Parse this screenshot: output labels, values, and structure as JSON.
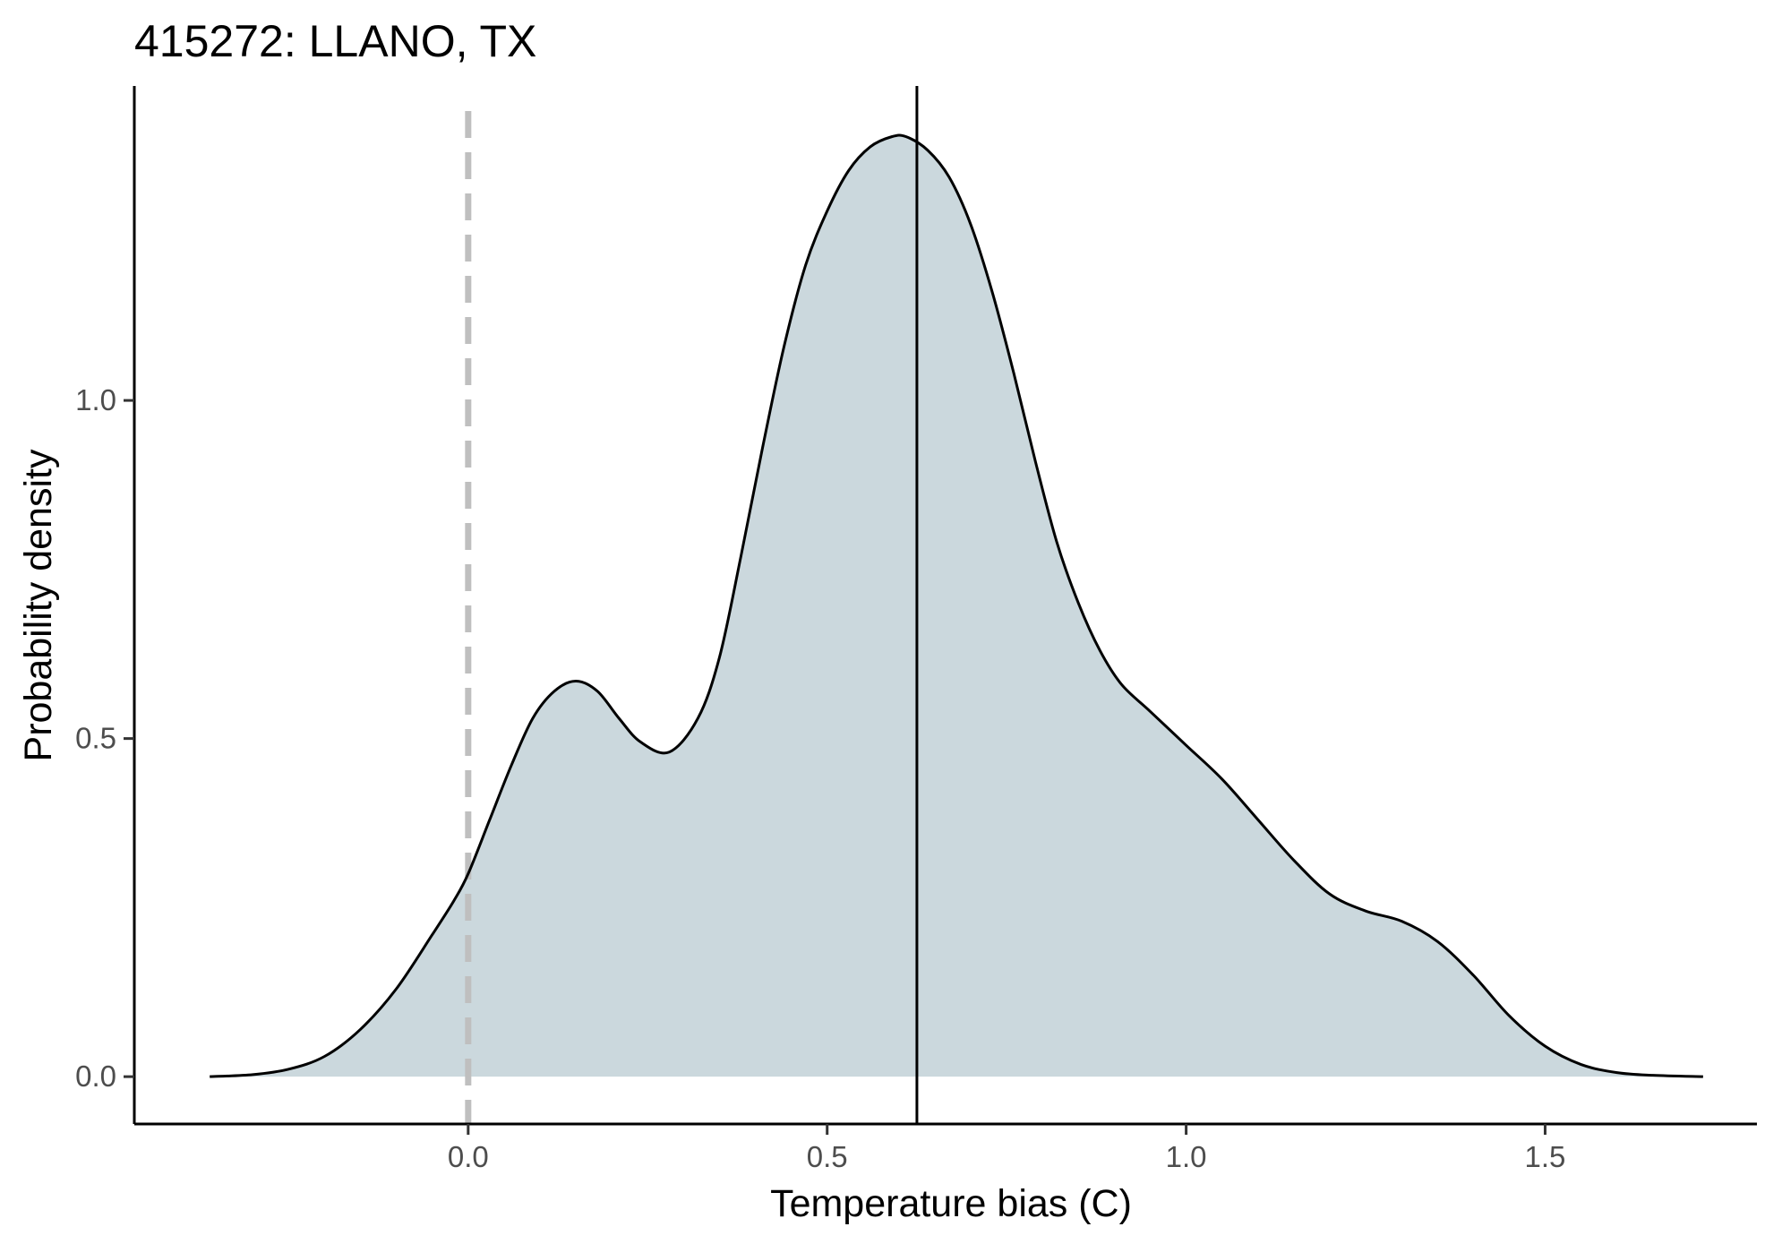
{
  "chart_data": {
    "type": "area",
    "title": "415272: LLANO, TX",
    "xlabel": "Temperature bias (C)",
    "ylabel": "Probability density",
    "xlim": [
      -0.465,
      1.795
    ],
    "ylim": [
      -0.07,
      1.465
    ],
    "x_ticks": [
      0.0,
      0.5,
      1.0,
      1.5
    ],
    "x_tick_labels": [
      "0.0",
      "0.5",
      "1.0",
      "1.5"
    ],
    "y_ticks": [
      0.0,
      0.5,
      1.0
    ],
    "y_tick_labels": [
      "0.0",
      "0.5",
      "1.0"
    ],
    "grid": false,
    "legend": "none",
    "fill_color": "#cbd8dd",
    "line_color": "#000000",
    "reference_lines": [
      {
        "x": 0.0,
        "style": "dashed",
        "color": "#bfbfbf"
      },
      {
        "x": 0.625,
        "style": "solid",
        "color": "#000000"
      }
    ],
    "density": {
      "x": [
        -0.36,
        -0.3,
        -0.25,
        -0.2,
        -0.15,
        -0.1,
        -0.05,
        -0.02,
        0.0,
        0.03,
        0.06,
        0.09,
        0.12,
        0.15,
        0.18,
        0.21,
        0.24,
        0.28,
        0.32,
        0.35,
        0.38,
        0.41,
        0.44,
        0.47,
        0.5,
        0.53,
        0.56,
        0.59,
        0.61,
        0.64,
        0.67,
        0.7,
        0.73,
        0.76,
        0.79,
        0.82,
        0.85,
        0.88,
        0.91,
        0.95,
        1.0,
        1.05,
        1.1,
        1.15,
        1.2,
        1.25,
        1.3,
        1.35,
        1.4,
        1.45,
        1.5,
        1.55,
        1.6,
        1.65,
        1.72
      ],
      "y": [
        0.0,
        0.003,
        0.011,
        0.03,
        0.07,
        0.13,
        0.21,
        0.26,
        0.3,
        0.38,
        0.46,
        0.53,
        0.57,
        0.585,
        0.57,
        0.53,
        0.495,
        0.48,
        0.53,
        0.62,
        0.77,
        0.93,
        1.08,
        1.2,
        1.28,
        1.34,
        1.375,
        1.39,
        1.39,
        1.37,
        1.33,
        1.26,
        1.16,
        1.04,
        0.91,
        0.79,
        0.7,
        0.63,
        0.58,
        0.54,
        0.49,
        0.44,
        0.38,
        0.32,
        0.27,
        0.245,
        0.23,
        0.2,
        0.15,
        0.09,
        0.045,
        0.018,
        0.006,
        0.002,
        0.0
      ]
    }
  }
}
